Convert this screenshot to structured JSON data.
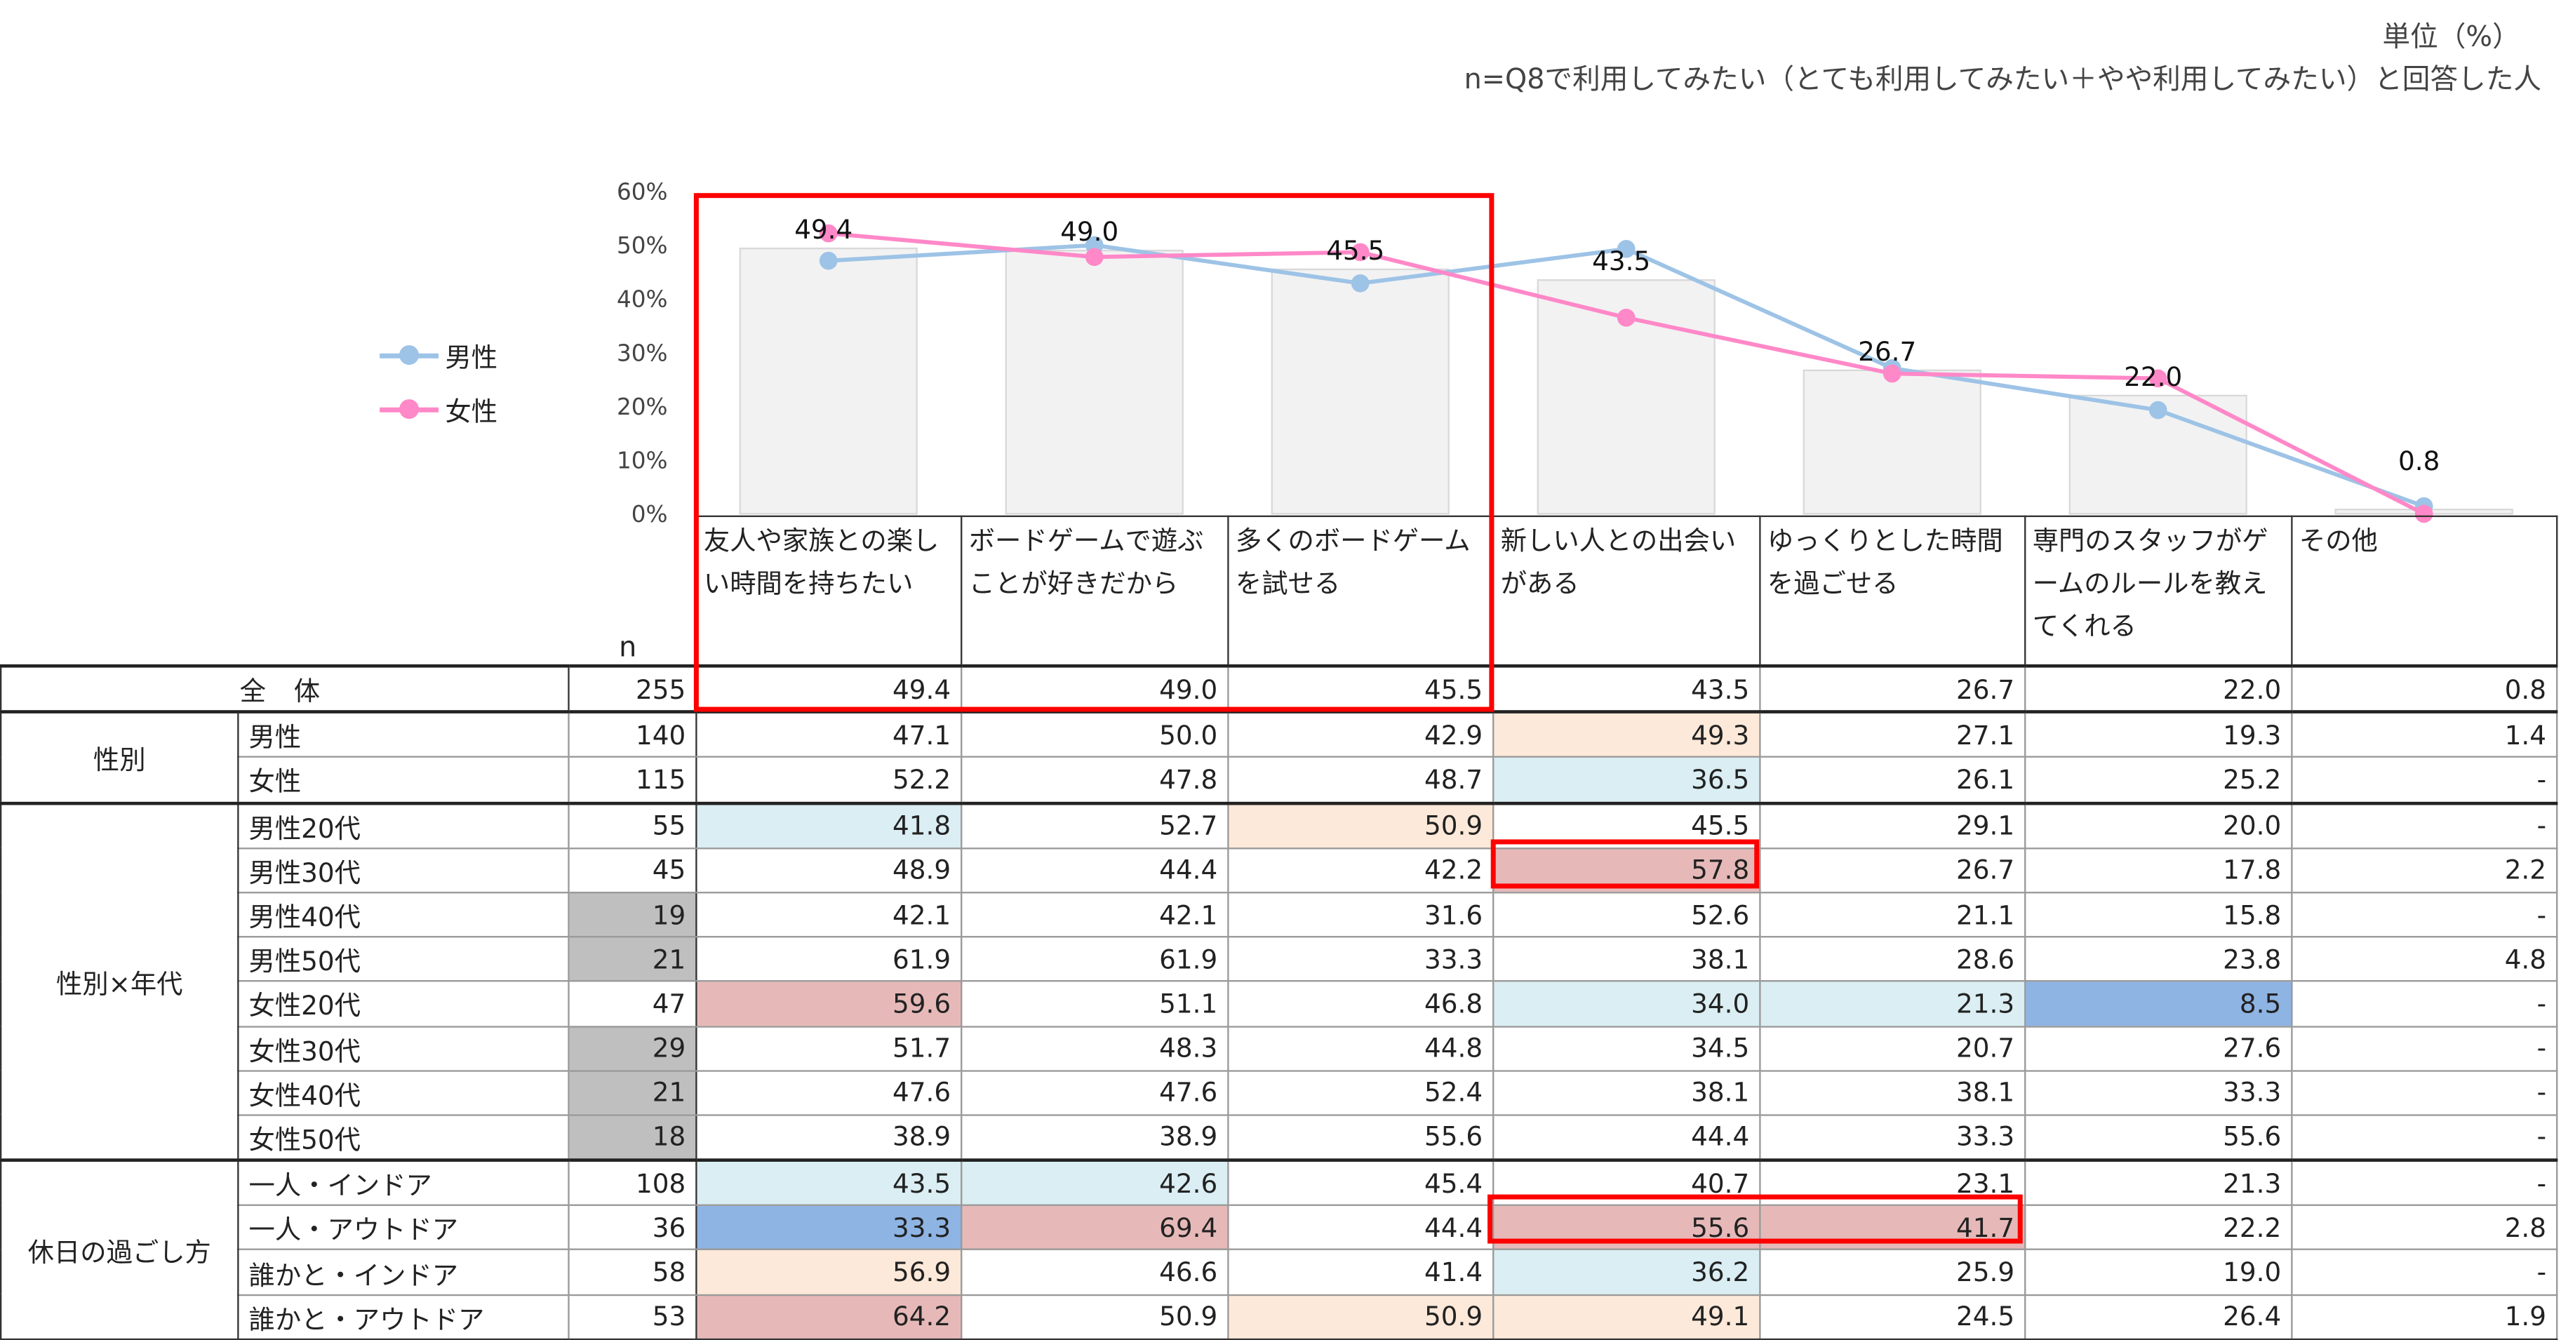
{
  "header": {
    "unit": "単位（%）",
    "note": "n=Q8で利用してみたい（とても利用してみたい＋やや利用してみたい）と回答した人"
  },
  "chart_data": {
    "type": "bar+line",
    "categories": [
      "友人や家族との楽しい時間を持ちたい",
      "ボードゲームで遊ぶことが好きだから",
      "多くのボードゲームを試せる",
      "新しい人との出会いがある",
      "ゆっくりとした時間を過ごせる",
      "専門のスタッフがゲームのルールを教えてくれる",
      "その他"
    ],
    "yticks": [
      "0%",
      "10%",
      "20%",
      "30%",
      "40%",
      "50%",
      "60%"
    ],
    "ylim": [
      0,
      60
    ],
    "bars": {
      "name": "全体",
      "values": [
        49.4,
        49.0,
        45.5,
        43.5,
        26.7,
        22.0,
        0.8
      ],
      "labels": [
        "49.4",
        "49.0",
        "45.5",
        "43.5",
        "26.7",
        "22.0",
        "0.8"
      ]
    },
    "series": [
      {
        "name": "男性",
        "color": "#9dc3e6",
        "values": [
          47.1,
          50.0,
          42.9,
          49.3,
          27.1,
          19.3,
          1.4
        ]
      },
      {
        "name": "女性",
        "color": "#ff88c8",
        "values": [
          52.2,
          47.8,
          48.7,
          36.5,
          26.1,
          25.2,
          0
        ]
      }
    ],
    "legend": "left"
  },
  "table": {
    "n_header": "n",
    "rows": [
      {
        "group": "全 体",
        "label": "",
        "n": "255",
        "values": [
          "49.4",
          "49.0",
          "45.5",
          "43.5",
          "26.7",
          "22.0",
          "0.8"
        ],
        "hl": [
          "",
          "",
          "",
          "",
          "",
          "",
          ""
        ]
      },
      {
        "group": "性別",
        "span": 2,
        "label": "男性",
        "n": "140",
        "values": [
          "47.1",
          "50.0",
          "42.9",
          "49.3",
          "27.1",
          "19.3",
          "1.4"
        ],
        "hl": [
          "",
          "",
          "",
          "pe",
          "",
          "",
          ""
        ]
      },
      {
        "label": "女性",
        "n": "115",
        "values": [
          "52.2",
          "47.8",
          "48.7",
          "36.5",
          "26.1",
          "25.2",
          "-"
        ],
        "hl": [
          "",
          "",
          "",
          "lb",
          "",
          "",
          ""
        ]
      },
      {
        "group": "性別×年代",
        "span": 8,
        "label": "男性20代",
        "n": "55",
        "values": [
          "41.8",
          "52.7",
          "50.9",
          "45.5",
          "29.1",
          "20.0",
          "-"
        ],
        "hl": [
          "lb",
          "",
          "pe",
          "",
          "",
          "",
          ""
        ]
      },
      {
        "label": "男性30代",
        "n": "45",
        "values": [
          "48.9",
          "44.4",
          "42.2",
          "57.8",
          "26.7",
          "17.8",
          "2.2"
        ],
        "hl": [
          "",
          "",
          "",
          "pk",
          "",
          "",
          ""
        ]
      },
      {
        "label": "男性40代",
        "n": "19",
        "ngray": true,
        "values": [
          "42.1",
          "42.1",
          "31.6",
          "52.6",
          "21.1",
          "15.8",
          "-"
        ],
        "hl": [
          "",
          "",
          "",
          "",
          "",
          "",
          ""
        ]
      },
      {
        "label": "男性50代",
        "n": "21",
        "ngray": true,
        "values": [
          "61.9",
          "61.9",
          "33.3",
          "38.1",
          "28.6",
          "23.8",
          "4.8"
        ],
        "hl": [
          "",
          "",
          "",
          "",
          "",
          "",
          ""
        ]
      },
      {
        "label": "女性20代",
        "n": "47",
        "values": [
          "59.6",
          "51.1",
          "46.8",
          "34.0",
          "21.3",
          "8.5",
          "-"
        ],
        "hl": [
          "pk",
          "",
          "",
          "lb",
          "lb",
          "db",
          ""
        ]
      },
      {
        "label": "女性30代",
        "n": "29",
        "ngray": true,
        "values": [
          "51.7",
          "48.3",
          "44.8",
          "34.5",
          "20.7",
          "27.6",
          "-"
        ],
        "hl": [
          "",
          "",
          "",
          "",
          "",
          "",
          ""
        ]
      },
      {
        "label": "女性40代",
        "n": "21",
        "ngray": true,
        "values": [
          "47.6",
          "47.6",
          "52.4",
          "38.1",
          "38.1",
          "33.3",
          "-"
        ],
        "hl": [
          "",
          "",
          "",
          "",
          "",
          "",
          ""
        ]
      },
      {
        "label": "女性50代",
        "n": "18",
        "ngray": true,
        "values": [
          "38.9",
          "38.9",
          "55.6",
          "44.4",
          "33.3",
          "55.6",
          "-"
        ],
        "hl": [
          "",
          "",
          "",
          "",
          "",
          "",
          ""
        ]
      },
      {
        "group": "休日の過ごし方",
        "span": 4,
        "label": "一人・インドア",
        "n": "108",
        "values": [
          "43.5",
          "42.6",
          "45.4",
          "40.7",
          "23.1",
          "21.3",
          "-"
        ],
        "hl": [
          "lb",
          "lb",
          "",
          "",
          "",
          "",
          ""
        ]
      },
      {
        "label": "一人・アウトドア",
        "n": "36",
        "values": [
          "33.3",
          "69.4",
          "44.4",
          "55.6",
          "41.7",
          "22.2",
          "2.8"
        ],
        "hl": [
          "db",
          "pk",
          "",
          "pk",
          "pk",
          "",
          ""
        ]
      },
      {
        "label": "誰かと・インドア",
        "n": "58",
        "values": [
          "56.9",
          "46.6",
          "41.4",
          "36.2",
          "25.9",
          "19.0",
          "-"
        ],
        "hl": [
          "pe",
          "",
          "",
          "lb",
          "",
          "",
          ""
        ]
      },
      {
        "label": "誰かと・アウトドア",
        "n": "53",
        "values": [
          "64.2",
          "50.9",
          "50.9",
          "49.1",
          "24.5",
          "26.4",
          "1.9"
        ],
        "hl": [
          "pk",
          "",
          "pe",
          "pe",
          "",
          "",
          ""
        ]
      }
    ]
  }
}
